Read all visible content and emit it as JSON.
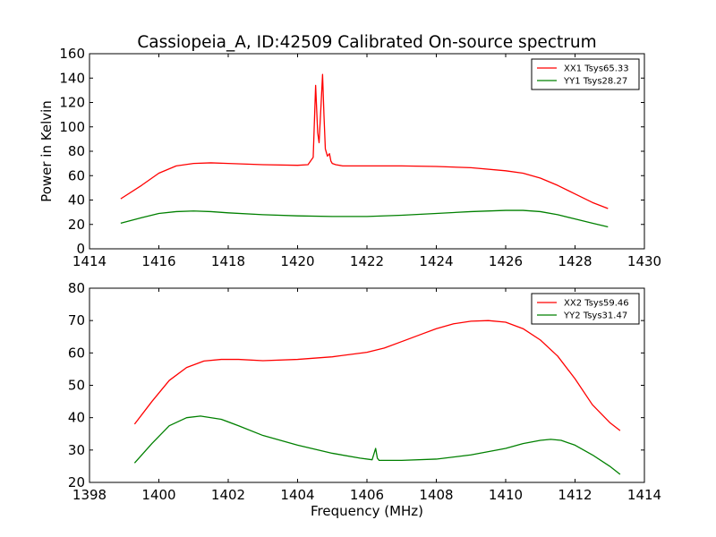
{
  "title": "Cassiopeia_A, ID:42509 Calibrated On-source spectrum",
  "chart_data": [
    {
      "type": "line",
      "ylabel": "Power in Kelvin",
      "xlabel": "",
      "xlim": [
        1414,
        1430
      ],
      "ylim": [
        0,
        160
      ],
      "xticks": [
        "1414",
        "1416",
        "1418",
        "1420",
        "1422",
        "1424",
        "1426",
        "1428",
        "1430"
      ],
      "yticks": [
        "0",
        "20",
        "40",
        "60",
        "80",
        "100",
        "120",
        "140",
        "160"
      ],
      "grid": false,
      "legend_position": "top-right",
      "series": [
        {
          "name": "XX1 Tsys65.33",
          "color": "#ff0000",
          "x": [
            1414.9,
            1415.5,
            1416.0,
            1416.5,
            1417.0,
            1417.5,
            1418.0,
            1419.0,
            1420.0,
            1420.3,
            1420.45,
            1420.52,
            1420.58,
            1420.62,
            1420.68,
            1420.72,
            1420.76,
            1420.8,
            1420.86,
            1420.92,
            1420.96,
            1421.0,
            1421.1,
            1421.3,
            1422.0,
            1423.0,
            1424.0,
            1425.0,
            1426.0,
            1426.5,
            1427.0,
            1427.5,
            1428.0,
            1428.5,
            1428.95
          ],
          "values": [
            41,
            52,
            62,
            68,
            70,
            70.5,
            70,
            69,
            68.5,
            69,
            75,
            134,
            95,
            87,
            120,
            143,
            110,
            82,
            76,
            78,
            72,
            70,
            69,
            68,
            68,
            68,
            67.5,
            66.5,
            64,
            62,
            58,
            52,
            45,
            38,
            33
          ]
        },
        {
          "name": "YY1 Tsys28.27",
          "color": "#008000",
          "x": [
            1414.9,
            1415.5,
            1416.0,
            1416.5,
            1417.0,
            1417.5,
            1418.0,
            1419.0,
            1420.0,
            1421.0,
            1422.0,
            1423.0,
            1424.0,
            1425.0,
            1426.0,
            1426.5,
            1427.0,
            1427.5,
            1428.0,
            1428.5,
            1428.95
          ],
          "values": [
            21,
            25.5,
            29,
            30.5,
            31,
            30.5,
            29.5,
            28,
            27,
            26.5,
            26.5,
            27.5,
            29,
            30.5,
            31.5,
            31.5,
            30.5,
            28,
            24.5,
            21,
            18
          ]
        }
      ]
    },
    {
      "type": "line",
      "xlabel": "Frequency (MHz)",
      "ylabel": "",
      "xlim": [
        1398,
        1414
      ],
      "ylim": [
        20,
        80
      ],
      "xticks": [
        "1398",
        "1400",
        "1402",
        "1404",
        "1406",
        "1408",
        "1410",
        "1412",
        "1414"
      ],
      "yticks": [
        "20",
        "30",
        "40",
        "50",
        "60",
        "70",
        "80"
      ],
      "grid": false,
      "legend_position": "top-right",
      "series": [
        {
          "name": "XX2 Tsys59.46",
          "color": "#ff0000",
          "x": [
            1399.3,
            1399.8,
            1400.3,
            1400.8,
            1401.3,
            1401.8,
            1402.3,
            1403.0,
            1404.0,
            1405.0,
            1406.0,
            1406.5,
            1407.0,
            1407.5,
            1408.0,
            1408.5,
            1409.0,
            1409.5,
            1410.0,
            1410.5,
            1411.0,
            1411.5,
            1412.0,
            1412.5,
            1413.0,
            1413.3
          ],
          "values": [
            38,
            45,
            51.5,
            55.5,
            57.5,
            58,
            58,
            57.6,
            58,
            58.8,
            60.2,
            61.5,
            63.5,
            65.5,
            67.5,
            69,
            69.8,
            70,
            69.5,
            67.5,
            64,
            59,
            52,
            44,
            38.5,
            36
          ]
        },
        {
          "name": "YY2 Tsys31.47",
          "color": "#008000",
          "x": [
            1399.3,
            1399.8,
            1400.3,
            1400.8,
            1401.2,
            1401.8,
            1402.3,
            1403.0,
            1404.0,
            1405.0,
            1405.8,
            1406.15,
            1406.25,
            1406.3,
            1406.35,
            1406.5,
            1407.0,
            1408.0,
            1409.0,
            1410.0,
            1410.5,
            1411.0,
            1411.3,
            1411.6,
            1412.0,
            1412.5,
            1413.0,
            1413.3
          ],
          "values": [
            26,
            32,
            37.5,
            40,
            40.5,
            39.5,
            37.5,
            34.5,
            31.5,
            29,
            27.5,
            27,
            30.5,
            27.5,
            26.8,
            26.8,
            26.8,
            27.2,
            28.5,
            30.5,
            32,
            33,
            33.3,
            33,
            31.5,
            28.5,
            25,
            22.5
          ]
        }
      ]
    }
  ]
}
